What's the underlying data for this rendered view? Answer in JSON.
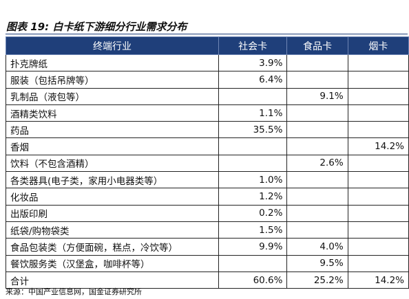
{
  "figure": {
    "title": "图表 19:  白卡纸下游细分行业需求分布",
    "source": "来源：中国产业信息网，国金证券研究所"
  },
  "table": {
    "headers": [
      "终端行业",
      "社会卡",
      "食品卡",
      "烟卡"
    ],
    "rows": [
      [
        "扑克牌纸",
        "3.9%",
        "",
        ""
      ],
      [
        "服装（包括吊牌等）",
        "6.4%",
        "",
        ""
      ],
      [
        "乳制品（液包等）",
        "",
        "9.1%",
        ""
      ],
      [
        "酒精类饮料",
        "1.1%",
        "",
        ""
      ],
      [
        "药品",
        "35.5%",
        "",
        ""
      ],
      [
        "香烟",
        "",
        "",
        "14.2%"
      ],
      [
        "饮料（不包含酒精）",
        "",
        "2.6%",
        ""
      ],
      [
        "各类器具(电子类，家用小电器类等）",
        "1.0%",
        "",
        ""
      ],
      [
        "化妆品",
        "1.2%",
        "",
        ""
      ],
      [
        "出版印刷",
        "0.2%",
        "",
        ""
      ],
      [
        "纸袋/购物袋类",
        "1.5%",
        "",
        ""
      ],
      [
        "食品包装类（方便面碗，糕点，冷饮等）",
        "9.9%",
        "4.0%",
        ""
      ],
      [
        "餐饮服务类（汉堡盒，咖啡杯等）",
        "",
        "9.5%",
        ""
      ],
      [
        "合计",
        "60.6%",
        "25.2%",
        "14.2%"
      ]
    ]
  }
}
